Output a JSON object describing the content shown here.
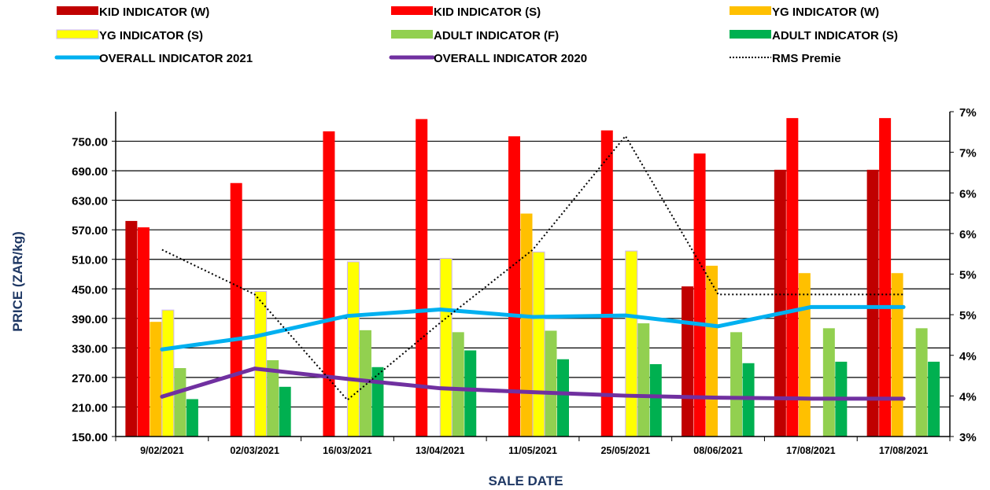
{
  "chart_data": {
    "type": "bar",
    "title": "",
    "xlabel": "SALE DATE",
    "ylabel": "PRICE (ZAR/kg)",
    "y2label": "",
    "ylim": [
      150,
      810
    ],
    "yticks": [
      "750.00",
      "690.00",
      "630.00",
      "570.00",
      "510.00",
      "450.00",
      "390.00",
      "330.00",
      "270.00",
      "210.00",
      "150.00"
    ],
    "ytick_values": [
      750,
      690,
      630,
      570,
      510,
      450,
      390,
      330,
      270,
      210,
      150
    ],
    "y2lim": [
      3.0,
      7.0
    ],
    "y2ticks": [
      "7%",
      "7%",
      "6%",
      "6%",
      "5%",
      "5%",
      "4%",
      "4%",
      "3%"
    ],
    "y2tick_values": [
      7.0,
      6.5,
      6.0,
      5.5,
      5.0,
      4.5,
      4.0,
      3.5,
      3.0
    ],
    "grid": "horizontal",
    "legend_position": "top",
    "categories": [
      "9/02/2021",
      "02/03/2021",
      "16/03/2021",
      "13/04/2021",
      "11/05/2021",
      "25/05/2021",
      "08/06/2021",
      "17/08/2021",
      "17/08/2021"
    ],
    "bar_series": [
      {
        "name": "KID INDICATOR (W)",
        "color": "#c00000",
        "values": [
          588,
          null,
          null,
          null,
          null,
          null,
          455,
          692,
          692
        ]
      },
      {
        "name": "KID INDICATOR (S)",
        "color": "#ff0000",
        "values": [
          575,
          665,
          770,
          795,
          760,
          772,
          725,
          797,
          797
        ]
      },
      {
        "name": "YG INDICATOR (W)",
        "color": "#ffc000",
        "values": [
          383,
          null,
          null,
          null,
          603,
          null,
          497,
          482,
          482
        ]
      },
      {
        "name": "YG INDICATOR (S)",
        "color": "#ffff00",
        "values": [
          407,
          445,
          505,
          512,
          525,
          527,
          null,
          null,
          null
        ]
      },
      {
        "name": "ADULT INDICATOR (F)",
        "color": "#92d050",
        "values": [
          289,
          305,
          366,
          362,
          365,
          380,
          362,
          370,
          370
        ]
      },
      {
        "name": "ADULT INDICATOR (S)",
        "color": "#00b050",
        "values": [
          226,
          251,
          291,
          325,
          307,
          297,
          299,
          302,
          302
        ]
      }
    ],
    "line_series": [
      {
        "name": "OVERALL INDICATOR 2021",
        "color": "#00b0f0",
        "style": "solid",
        "axis": "left",
        "values": [
          327,
          353,
          395,
          408,
          393,
          396,
          374,
          413,
          413
        ]
      },
      {
        "name": "OVERALL INDICATOR 2020",
        "color": "#7030a0",
        "style": "solid",
        "axis": "left",
        "values": [
          231,
          288,
          267,
          248,
          240,
          233,
          229,
          227,
          227
        ]
      },
      {
        "name": "RMS Premie",
        "color": "#000000",
        "style": "dotted",
        "axis": "right",
        "values": [
          5.3,
          4.75,
          3.45,
          4.4,
          5.3,
          6.7,
          4.75,
          4.75,
          4.75
        ]
      }
    ]
  }
}
